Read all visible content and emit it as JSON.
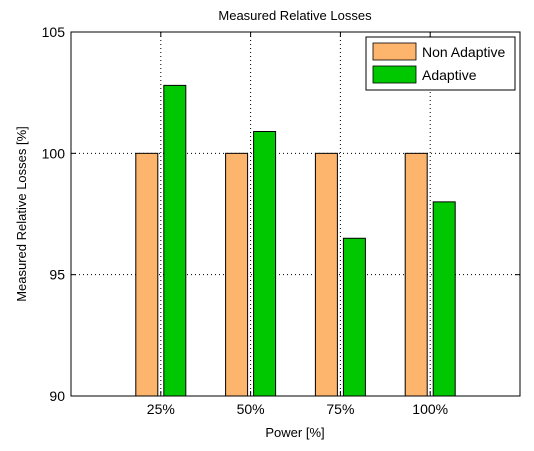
{
  "chart_data": {
    "type": "bar",
    "title": "Measured Relative Losses",
    "xlabel": "Power [%]",
    "ylabel": "Measured Relative Losses [%]",
    "categories": [
      "25%",
      "50%",
      "75%",
      "100%"
    ],
    "ylim": [
      90,
      105
    ],
    "yticks": [
      90,
      95,
      100,
      105
    ],
    "grid": true,
    "legend_position": "top-right",
    "series": [
      {
        "name": "Non Adaptive",
        "color": "#FDB46C",
        "values": [
          100,
          100,
          100,
          100
        ]
      },
      {
        "name": "Adaptive",
        "color": "#00C800",
        "values": [
          102.8,
          100.9,
          96.5,
          98.0
        ]
      }
    ]
  }
}
